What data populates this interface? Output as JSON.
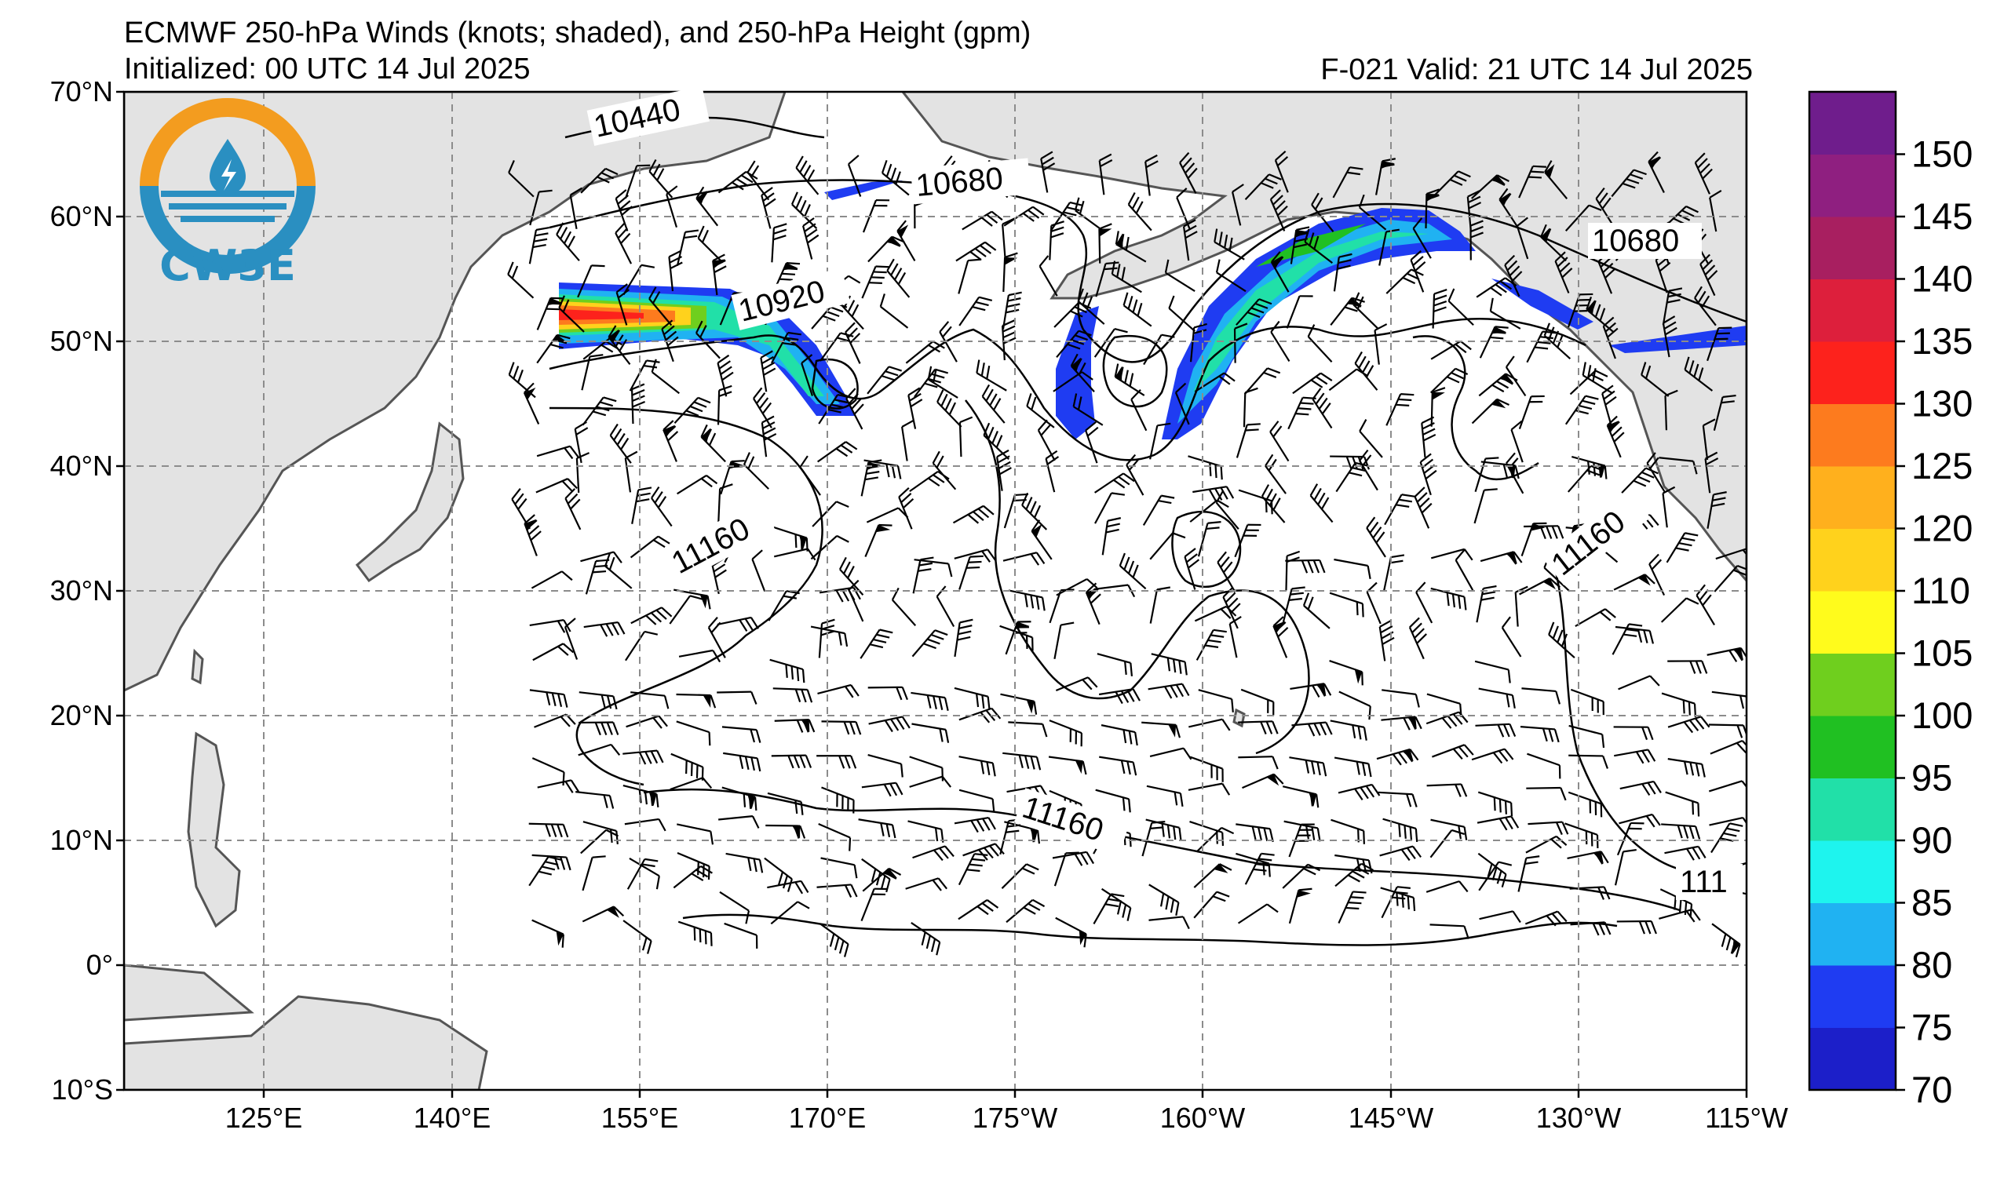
{
  "title": "ECMWF 250-hPa Winds (knots; shaded), and 250-hPa Height (gpm)",
  "initialized": "Initialized: 00 UTC 14 Jul 2025",
  "valid": "F-021  Valid: 21 UTC 14 Jul 2025",
  "logo": {
    "text": "CW3E",
    "color": "#2a8fc1",
    "ring_color": "#f39c1f"
  },
  "map": {
    "lat_ticks": [
      "70°N",
      "60°N",
      "50°N",
      "40°N",
      "30°N",
      "20°N",
      "10°N",
      "0°",
      "10°S"
    ],
    "lon_ticks": [
      "125°E",
      "140°E",
      "155°E",
      "170°E",
      "175°W",
      "160°W",
      "145°W",
      "130°W",
      "115°W"
    ],
    "land_color": "#e6e6e6",
    "grid_color": "#8c8c8c"
  },
  "contours": [
    {
      "label": "10440"
    },
    {
      "label": "10680"
    },
    {
      "label": "10680"
    },
    {
      "label": "10920"
    },
    {
      "label": "11160"
    },
    {
      "label": "11160"
    },
    {
      "label": "11160"
    },
    {
      "label": "111"
    }
  ],
  "colorbar": {
    "levels": [
      70,
      75,
      80,
      85,
      90,
      95,
      100,
      105,
      110,
      120,
      125,
      130,
      135,
      140,
      145,
      150
    ],
    "labels": [
      "70",
      "75",
      "80",
      "85",
      "90",
      "95",
      "100",
      "105",
      "110",
      "120",
      "125",
      "130",
      "135",
      "140",
      "145",
      "150"
    ],
    "colors": [
      "#1c1fc9",
      "#1f3cf2",
      "#20b2f2",
      "#1ef4ee",
      "#21e0a8",
      "#20c022",
      "#6fcf1e",
      "#fffb1c",
      "#ffd21c",
      "#ffb01d",
      "#fd7b1e",
      "#fd221c",
      "#dd1f3c",
      "#a81f60",
      "#8f1f80",
      "#6f1d8c"
    ]
  }
}
